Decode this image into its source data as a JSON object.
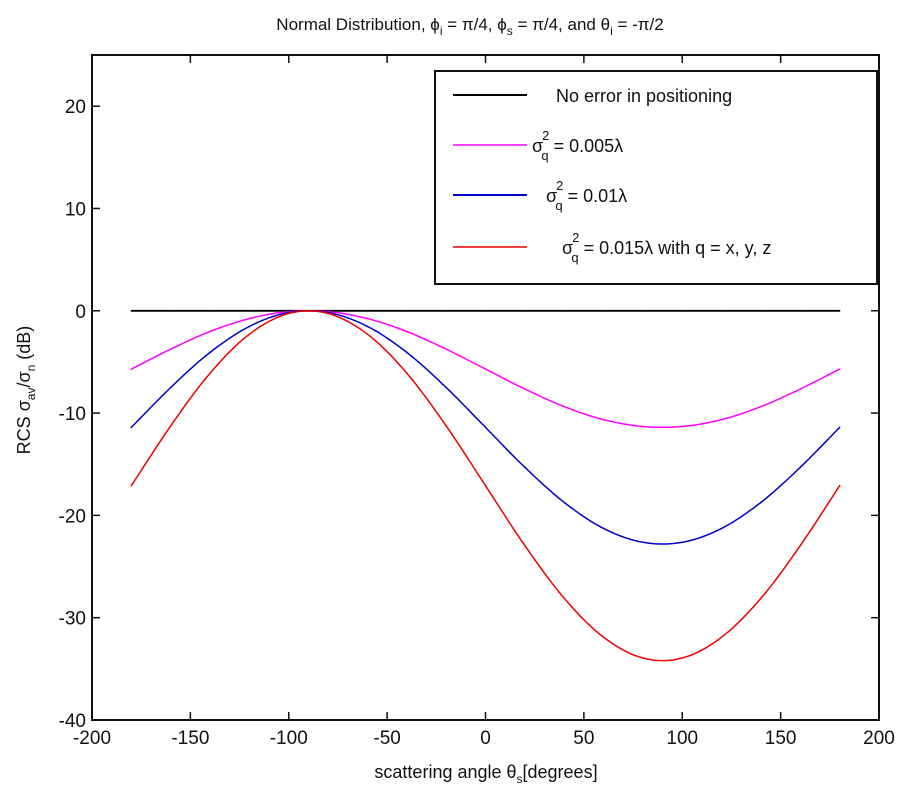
{
  "chart_data": {
    "type": "line",
    "title": "Normal Distribution, ϕ_i = π/4, ϕ_s = π/4, and θ_i = -π/2",
    "title_parts": {
      "prefix": "Normal Distribution, ",
      "phi": "ϕ",
      "sub_i": "i",
      "eq1": " = π/4, ",
      "sub_s": "s",
      "eq2": " = π/4, and ",
      "theta": "θ",
      "eq3": " = -π/2"
    },
    "xlabel": "scattering angle θs[degrees]",
    "xlabel_parts": {
      "text": "scattering angle θ",
      "sub": "s",
      "suffix": "[degrees]"
    },
    "ylabel": "RCS σav/σn (dB)",
    "ylabel_parts": {
      "prefix": "RCS   σ",
      "sub1": "av",
      "mid": "/σ",
      "sub2": "n",
      "suffix": " (dB)"
    },
    "xlim": [
      -200,
      200
    ],
    "ylim": [
      -40,
      25
    ],
    "xticks": [
      -200,
      -150,
      -100,
      -50,
      0,
      50,
      100,
      150,
      200
    ],
    "yticks": [
      -40,
      -30,
      -20,
      -10,
      0,
      10,
      20
    ],
    "grid": false,
    "legend_placement": "top-right",
    "x": [
      -180,
      -160,
      -140,
      -120,
      -100,
      -80,
      -60,
      -40,
      -20,
      0,
      20,
      40,
      60,
      80,
      100,
      120,
      140,
      160,
      180
    ],
    "series": [
      {
        "name": "No error in positioning",
        "color": "#000000",
        "values": [
          0,
          0,
          0,
          0,
          0,
          0,
          0,
          0,
          0,
          0,
          0,
          0,
          0,
          0,
          0,
          0,
          0,
          0,
          0
        ]
      },
      {
        "name": "σq2 = 0.005λ",
        "color": "#ff00ff",
        "values": [
          -5.7,
          -3.75,
          -2.03,
          -0.76,
          -0.09,
          -0.09,
          -0.76,
          -2.03,
          -3.75,
          -5.7,
          -7.65,
          -9.37,
          -10.64,
          -11.31,
          -11.31,
          -10.64,
          -9.37,
          -7.65,
          -5.7
        ]
      },
      {
        "name": "σq2 = 0.01λ",
        "color": "#0000cc",
        "values": [
          -11.4,
          -7.5,
          -4.07,
          -1.53,
          -0.17,
          -0.17,
          -1.53,
          -4.07,
          -7.5,
          -11.4,
          -15.3,
          -18.73,
          -21.27,
          -22.63,
          -22.63,
          -21.27,
          -18.73,
          -15.3,
          -11.4
        ]
      },
      {
        "name": "σq2 = 0.015λ with q = x, y, z",
        "color": "#ee0000",
        "values": [
          -17.1,
          -11.25,
          -6.1,
          -2.29,
          -0.26,
          -0.26,
          -2.29,
          -6.1,
          -11.25,
          -17.1,
          -22.95,
          -28.1,
          -31.91,
          -33.94,
          -33.94,
          -31.91,
          -28.1,
          -22.95,
          -17.1
        ]
      }
    ],
    "legend_parts": [
      {
        "text": "No error in positioning"
      },
      {
        "sigma": "σ",
        "sup": "2",
        "sub": "q",
        "rest": " = 0.005λ"
      },
      {
        "sigma": "σ",
        "sup": "2",
        "sub": "q",
        "rest": " = 0.01λ"
      },
      {
        "sigma": "σ",
        "sup": "2",
        "sub": "q",
        "rest": " = 0.015λ with q = x, y, z"
      }
    ]
  }
}
